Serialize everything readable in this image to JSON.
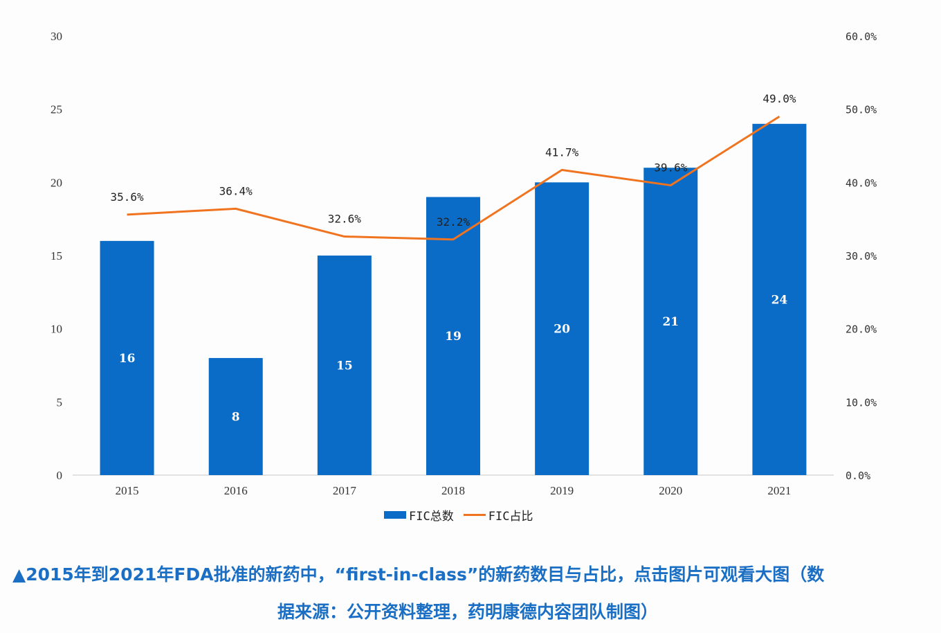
{
  "chart_data": {
    "type": "bar+line",
    "categories": [
      "2015",
      "2016",
      "2017",
      "2018",
      "2019",
      "2020",
      "2021"
    ],
    "series": [
      {
        "name": "FIC总数",
        "type": "bar",
        "axis": "left",
        "color": "#0a6cc6",
        "values": [
          16,
          8,
          15,
          19,
          20,
          21,
          24
        ],
        "labels": [
          "16",
          "8",
          "15",
          "19",
          "20",
          "21",
          "24"
        ]
      },
      {
        "name": "FIC占比",
        "type": "line",
        "axis": "right",
        "color": "#f07320",
        "values": [
          35.6,
          36.4,
          32.6,
          32.2,
          41.7,
          39.6,
          49.0
        ],
        "labels": [
          "35.6%",
          "36.4%",
          "32.6%",
          "32.2%",
          "41.7%",
          "39.6%",
          "49.0%"
        ]
      }
    ],
    "left_axis": {
      "ylim": [
        0,
        30
      ],
      "ticks": [
        "0",
        "5",
        "10",
        "15",
        "20",
        "25",
        "30"
      ]
    },
    "right_axis": {
      "ylim": [
        0,
        60
      ],
      "ticks": [
        "0.0%",
        "10.0%",
        "20.0%",
        "30.0%",
        "40.0%",
        "50.0%",
        "60.0%"
      ]
    },
    "grid": false,
    "legend": {
      "position": "bottom-center",
      "entries": [
        "FIC总数",
        "FIC占比"
      ]
    },
    "title": "",
    "xlabel": "",
    "ylabel": ""
  },
  "caption": {
    "line1": "▲2015年到2021年FDA批准的新药中，“first-in-class”的新药数目与占比，点击图片可观看大图（数",
    "line2": "据来源：公开资料整理，药明康德内容团队制图）"
  }
}
